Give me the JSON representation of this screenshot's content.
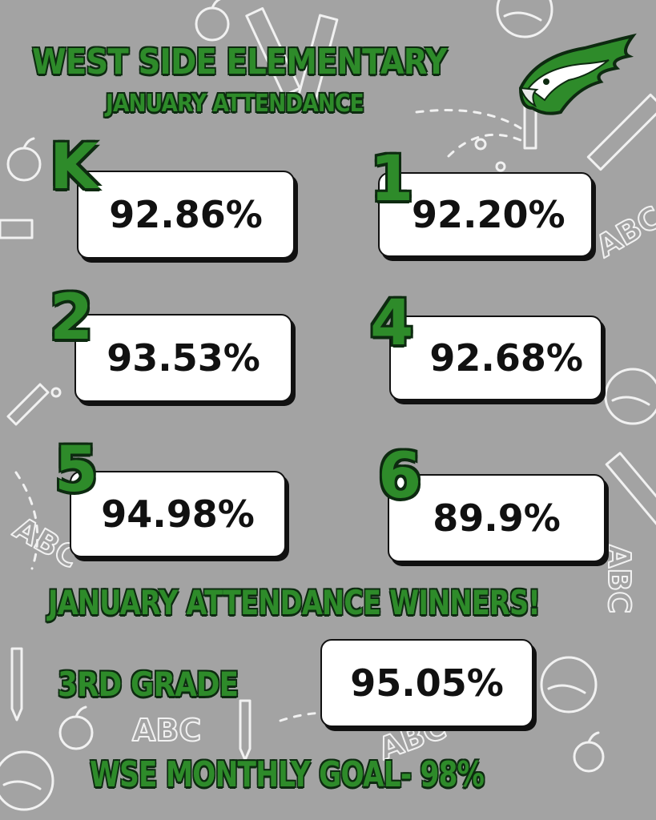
{
  "header": {
    "title": "WEST SIDE ELEMENTARY",
    "subtitle": "JANUARY ATTENDANCE"
  },
  "grades": [
    {
      "grade": "K",
      "value": "92.86%"
    },
    {
      "grade": "1",
      "value": "92.20%"
    },
    {
      "grade": "2",
      "value": "93.53%"
    },
    {
      "grade": "4",
      "value": "92.68%"
    },
    {
      "grade": "5",
      "value": "94.98%"
    },
    {
      "grade": "6",
      "value": "89.9%"
    }
  ],
  "winners": {
    "heading": "JANUARY ATTENDANCE WINNERS!",
    "grade_label": "3RD GRADE",
    "value": "95.05%"
  },
  "goal": "WSE MONTHLY GOAL- 98%",
  "colors": {
    "background": "#a3a3a3",
    "accent_green": "#2e8b2a",
    "outline_dark": "#0d2a10",
    "doodle": "#ffffff"
  },
  "logo_icon": "eagle-head-icon"
}
